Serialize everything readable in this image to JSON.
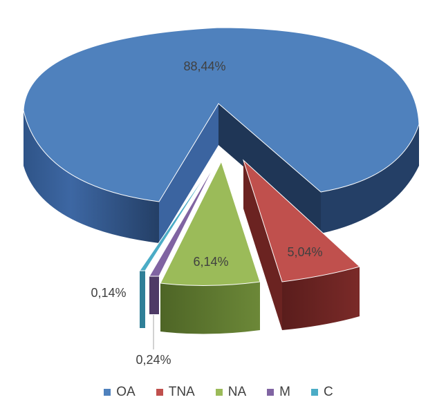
{
  "chart_data": {
    "type": "pie",
    "style": "3d-exploded",
    "categories": [
      "OA",
      "TNA",
      "NA",
      "M",
      "C"
    ],
    "values": [
      88.44,
      5.04,
      6.14,
      0.24,
      0.14
    ],
    "labels": [
      "88,44%",
      "5,04%",
      "6,14%",
      "0,24%",
      "0,14%"
    ],
    "colors": [
      "#4F81BD",
      "#C0504D",
      "#9BBB59",
      "#8064A2",
      "#4BACC6"
    ],
    "legend_position": "bottom"
  }
}
